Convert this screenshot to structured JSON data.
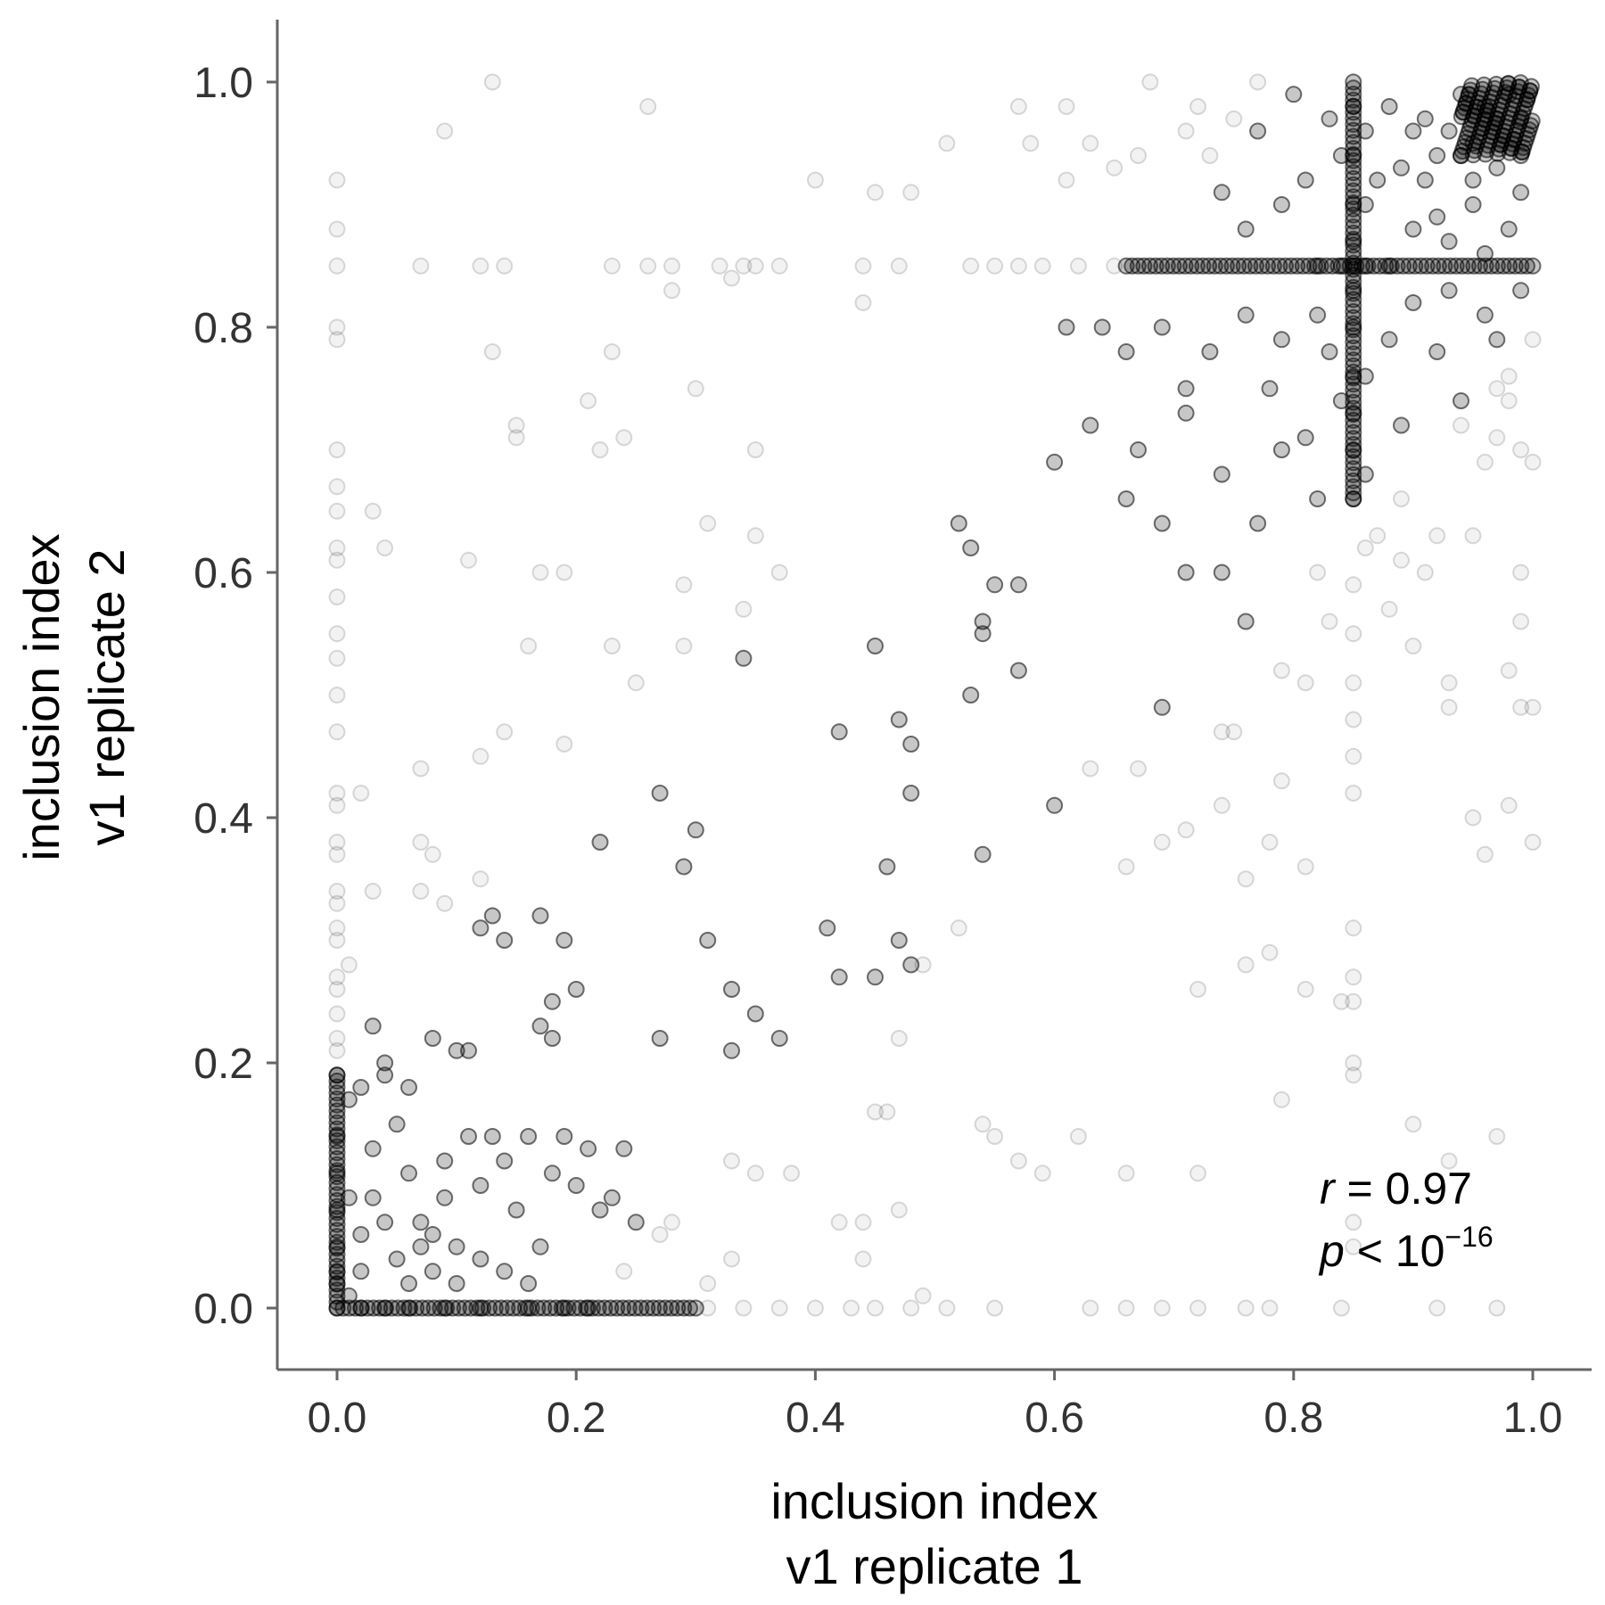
{
  "chart_data": {
    "type": "scatter",
    "xlabel": [
      "inclusion index",
      "v1 replicate 1"
    ],
    "ylabel": [
      "inclusion index",
      "v1 replicate 2"
    ],
    "xlim": [
      -0.05,
      1.05
    ],
    "ylim": [
      -0.05,
      1.05
    ],
    "xticks": [
      "0.0",
      "0.2",
      "0.4",
      "0.6",
      "0.8",
      "1.0"
    ],
    "yticks": [
      "0.0",
      "0.2",
      "0.4",
      "0.6",
      "0.8",
      "1.0"
    ],
    "grid": false,
    "legend": "none",
    "annotation": {
      "r_symbol": "r",
      "r_text": " = 0.97",
      "p_symbol": "p",
      "p_text": " < 10",
      "p_exponent": "−16",
      "placement": "bottom-right"
    },
    "colors": {
      "point": "#000000",
      "axis": "#666666"
    },
    "points_dark": [
      [
        0.85,
        0.85
      ],
      [
        0.85,
        0.83
      ],
      [
        0.85,
        0.87
      ],
      [
        0.86,
        0.85
      ],
      [
        0.84,
        0.85
      ],
      [
        0.85,
        0.8
      ],
      [
        0.85,
        0.9
      ],
      [
        0.82,
        0.85
      ],
      [
        0.88,
        0.85
      ],
      [
        0.95,
        0.95
      ],
      [
        0.97,
        0.97
      ],
      [
        0.98,
        0.99
      ],
      [
        0.96,
        0.98
      ],
      [
        0.99,
        0.97
      ],
      [
        0.93,
        0.96
      ],
      [
        0.97,
        0.93
      ],
      [
        0.94,
        0.99
      ],
      [
        0.99,
        0.94
      ],
      [
        0.91,
        0.92
      ],
      [
        0.92,
        0.89
      ],
      [
        0.89,
        0.93
      ],
      [
        0.95,
        0.9
      ],
      [
        0.9,
        0.96
      ],
      [
        0.98,
        0.88
      ],
      [
        0.88,
        0.98
      ],
      [
        0.96,
        0.86
      ],
      [
        0.86,
        0.96
      ],
      [
        0.93,
        0.87
      ],
      [
        0.87,
        0.92
      ],
      [
        0.91,
        0.97
      ],
      [
        0.99,
        0.91
      ],
      [
        0.92,
        0.94
      ],
      [
        0.95,
        0.92
      ],
      [
        0.9,
        0.88
      ],
      [
        0.86,
        0.9
      ],
      [
        0.84,
        0.94
      ],
      [
        0.81,
        0.92
      ],
      [
        0.79,
        0.9
      ],
      [
        0.83,
        0.97
      ],
      [
        0.77,
        0.96
      ],
      [
        0.8,
        0.99
      ],
      [
        0.76,
        0.88
      ],
      [
        0.74,
        0.91
      ],
      [
        0.82,
        0.81
      ],
      [
        0.79,
        0.79
      ],
      [
        0.83,
        0.78
      ],
      [
        0.86,
        0.76
      ],
      [
        0.88,
        0.79
      ],
      [
        0.9,
        0.82
      ],
      [
        0.93,
        0.83
      ],
      [
        0.96,
        0.81
      ],
      [
        0.99,
        0.83
      ],
      [
        0.97,
        0.79
      ],
      [
        0.92,
        0.78
      ],
      [
        0.94,
        0.74
      ],
      [
        0.89,
        0.72
      ],
      [
        0.84,
        0.74
      ],
      [
        0.81,
        0.71
      ],
      [
        0.78,
        0.75
      ],
      [
        0.76,
        0.81
      ],
      [
        0.73,
        0.78
      ],
      [
        0.71,
        0.75
      ],
      [
        0.69,
        0.8
      ],
      [
        0.66,
        0.78
      ],
      [
        0.64,
        0.8
      ],
      [
        0.61,
        0.8
      ],
      [
        0.67,
        0.7
      ],
      [
        0.71,
        0.73
      ],
      [
        0.74,
        0.68
      ],
      [
        0.79,
        0.7
      ],
      [
        0.82,
        0.66
      ],
      [
        0.86,
        0.68
      ],
      [
        0.85,
        0.66
      ],
      [
        0.85,
        0.7
      ],
      [
        0.85,
        0.73
      ],
      [
        0.85,
        0.76
      ],
      [
        0.85,
        0.94
      ],
      [
        0.85,
        0.98
      ],
      [
        0.63,
        0.72
      ],
      [
        0.6,
        0.69
      ],
      [
        0.66,
        0.66
      ],
      [
        0.69,
        0.64
      ],
      [
        0.71,
        0.6
      ],
      [
        0.74,
        0.6
      ],
      [
        0.77,
        0.64
      ],
      [
        0.76,
        0.56
      ],
      [
        0.69,
        0.49
      ],
      [
        0.57,
        0.59
      ],
      [
        0.55,
        0.59
      ],
      [
        0.54,
        0.56
      ],
      [
        0.52,
        0.64
      ],
      [
        0.53,
        0.62
      ],
      [
        0.54,
        0.55
      ],
      [
        0.57,
        0.52
      ],
      [
        0.53,
        0.5
      ],
      [
        0.6,
        0.41
      ],
      [
        0.45,
        0.54
      ],
      [
        0.47,
        0.48
      ],
      [
        0.48,
        0.46
      ],
      [
        0.42,
        0.47
      ],
      [
        0.48,
        0.42
      ],
      [
        0.46,
        0.36
      ],
      [
        0.54,
        0.37
      ],
      [
        0.27,
        0.42
      ],
      [
        0.3,
        0.39
      ],
      [
        0.29,
        0.36
      ],
      [
        0.34,
        0.53
      ],
      [
        0.22,
        0.38
      ],
      [
        0.41,
        0.31
      ],
      [
        0.47,
        0.3
      ],
      [
        0.48,
        0.28
      ],
      [
        0.45,
        0.27
      ],
      [
        0.42,
        0.27
      ],
      [
        0.31,
        0.3
      ],
      [
        0.33,
        0.26
      ],
      [
        0.35,
        0.24
      ],
      [
        0.37,
        0.22
      ],
      [
        0.33,
        0.21
      ],
      [
        0.27,
        0.22
      ],
      [
        0.2,
        0.26
      ],
      [
        0.17,
        0.23
      ],
      [
        0.18,
        0.25
      ],
      [
        0.19,
        0.3
      ],
      [
        0.17,
        0.32
      ],
      [
        0.14,
        0.3
      ],
      [
        0.13,
        0.32
      ],
      [
        0.12,
        0.31
      ],
      [
        0.18,
        0.22
      ],
      [
        0.1,
        0.21
      ],
      [
        0.11,
        0.21
      ],
      [
        0.08,
        0.22
      ],
      [
        0.06,
        0.18
      ],
      [
        0.04,
        0.2
      ],
      [
        0.04,
        0.19
      ],
      [
        0.03,
        0.23
      ],
      [
        0.02,
        0.18
      ],
      [
        0.01,
        0.17
      ],
      [
        0.0,
        0.19
      ],
      [
        0.0,
        0.14
      ],
      [
        0.0,
        0.11
      ],
      [
        0.0,
        0.08
      ],
      [
        0.0,
        0.05
      ],
      [
        0.0,
        0.03
      ],
      [
        0.0,
        0.02
      ],
      [
        0.01,
        0.01
      ],
      [
        0.02,
        0.0
      ],
      [
        0.04,
        0.0
      ],
      [
        0.06,
        0.0
      ],
      [
        0.09,
        0.0
      ],
      [
        0.12,
        0.0
      ],
      [
        0.16,
        0.0
      ],
      [
        0.19,
        0.0
      ],
      [
        0.21,
        0.0
      ],
      [
        0.02,
        0.06
      ],
      [
        0.03,
        0.09
      ],
      [
        0.05,
        0.04
      ],
      [
        0.07,
        0.07
      ],
      [
        0.06,
        0.11
      ],
      [
        0.08,
        0.03
      ],
      [
        0.09,
        0.09
      ],
      [
        0.1,
        0.05
      ],
      [
        0.11,
        0.14
      ],
      [
        0.12,
        0.1
      ],
      [
        0.13,
        0.14
      ],
      [
        0.14,
        0.12
      ],
      [
        0.15,
        0.08
      ],
      [
        0.16,
        0.14
      ],
      [
        0.17,
        0.05
      ],
      [
        0.18,
        0.11
      ],
      [
        0.19,
        0.14
      ],
      [
        0.2,
        0.1
      ],
      [
        0.21,
        0.13
      ],
      [
        0.22,
        0.08
      ],
      [
        0.23,
        0.09
      ],
      [
        0.24,
        0.13
      ],
      [
        0.25,
        0.07
      ],
      [
        0.03,
        0.13
      ],
      [
        0.05,
        0.15
      ],
      [
        0.07,
        0.05
      ],
      [
        0.09,
        0.12
      ],
      [
        0.01,
        0.09
      ],
      [
        0.02,
        0.03
      ],
      [
        0.04,
        0.07
      ],
      [
        0.06,
        0.02
      ],
      [
        0.08,
        0.06
      ],
      [
        0.1,
        0.02
      ],
      [
        0.12,
        0.04
      ],
      [
        0.14,
        0.03
      ],
      [
        0.16,
        0.02
      ]
    ],
    "points_light": [
      [
        0.13,
        1.0
      ],
      [
        0.09,
        0.96
      ],
      [
        0.26,
        0.98
      ],
      [
        0.0,
        0.92
      ],
      [
        0.0,
        0.88
      ],
      [
        0.0,
        0.85
      ],
      [
        0.0,
        0.8
      ],
      [
        0.0,
        0.79
      ],
      [
        0.0,
        0.7
      ],
      [
        0.0,
        0.67
      ],
      [
        0.0,
        0.65
      ],
      [
        0.0,
        0.62
      ],
      [
        0.0,
        0.61
      ],
      [
        0.0,
        0.58
      ],
      [
        0.0,
        0.55
      ],
      [
        0.0,
        0.53
      ],
      [
        0.0,
        0.5
      ],
      [
        0.0,
        0.47
      ],
      [
        0.0,
        0.42
      ],
      [
        0.0,
        0.41
      ],
      [
        0.0,
        0.38
      ],
      [
        0.0,
        0.37
      ],
      [
        0.0,
        0.34
      ],
      [
        0.0,
        0.33
      ],
      [
        0.0,
        0.31
      ],
      [
        0.0,
        0.3
      ],
      [
        0.0,
        0.27
      ],
      [
        0.0,
        0.26
      ],
      [
        0.0,
        0.24
      ],
      [
        0.0,
        0.22
      ],
      [
        0.0,
        0.21
      ],
      [
        0.07,
        0.85
      ],
      [
        0.12,
        0.85
      ],
      [
        0.14,
        0.85
      ],
      [
        0.23,
        0.85
      ],
      [
        0.26,
        0.85
      ],
      [
        0.28,
        0.85
      ],
      [
        0.32,
        0.85
      ],
      [
        0.34,
        0.85
      ],
      [
        0.35,
        0.85
      ],
      [
        0.37,
        0.85
      ],
      [
        0.44,
        0.85
      ],
      [
        0.47,
        0.85
      ],
      [
        0.53,
        0.85
      ],
      [
        0.55,
        0.85
      ],
      [
        0.57,
        0.85
      ],
      [
        0.59,
        0.85
      ],
      [
        0.62,
        0.85
      ],
      [
        0.65,
        0.85
      ],
      [
        0.28,
        0.83
      ],
      [
        0.33,
        0.84
      ],
      [
        0.44,
        0.82
      ],
      [
        0.4,
        0.92
      ],
      [
        0.45,
        0.91
      ],
      [
        0.48,
        0.91
      ],
      [
        0.51,
        0.95
      ],
      [
        0.57,
        0.98
      ],
      [
        0.58,
        0.95
      ],
      [
        0.61,
        0.98
      ],
      [
        0.61,
        0.92
      ],
      [
        0.63,
        0.95
      ],
      [
        0.65,
        0.93
      ],
      [
        0.67,
        0.94
      ],
      [
        0.68,
        1.0
      ],
      [
        0.72,
        0.98
      ],
      [
        0.71,
        0.96
      ],
      [
        0.73,
        0.94
      ],
      [
        0.75,
        0.97
      ],
      [
        0.77,
        1.0
      ],
      [
        0.13,
        0.78
      ],
      [
        0.23,
        0.78
      ],
      [
        0.3,
        0.75
      ],
      [
        0.21,
        0.74
      ],
      [
        0.15,
        0.72
      ],
      [
        0.15,
        0.71
      ],
      [
        0.22,
        0.7
      ],
      [
        0.24,
        0.71
      ],
      [
        0.35,
        0.7
      ],
      [
        0.31,
        0.64
      ],
      [
        0.35,
        0.63
      ],
      [
        0.03,
        0.65
      ],
      [
        0.04,
        0.62
      ],
      [
        0.11,
        0.61
      ],
      [
        0.17,
        0.6
      ],
      [
        0.19,
        0.6
      ],
      [
        0.29,
        0.59
      ],
      [
        0.37,
        0.6
      ],
      [
        0.34,
        0.57
      ],
      [
        0.23,
        0.54
      ],
      [
        0.16,
        0.54
      ],
      [
        0.29,
        0.54
      ],
      [
        0.25,
        0.51
      ],
      [
        0.12,
        0.45
      ],
      [
        0.14,
        0.47
      ],
      [
        0.19,
        0.46
      ],
      [
        0.07,
        0.44
      ],
      [
        0.02,
        0.42
      ],
      [
        0.07,
        0.38
      ],
      [
        0.08,
        0.37
      ],
      [
        0.09,
        0.33
      ],
      [
        0.07,
        0.34
      ],
      [
        0.03,
        0.34
      ],
      [
        0.12,
        0.35
      ],
      [
        0.01,
        0.28
      ],
      [
        0.52,
        0.31
      ],
      [
        0.49,
        0.28
      ],
      [
        0.47,
        0.22
      ],
      [
        0.46,
        0.16
      ],
      [
        0.45,
        0.16
      ],
      [
        0.54,
        0.15
      ],
      [
        0.55,
        0.14
      ],
      [
        0.57,
        0.12
      ],
      [
        0.59,
        0.11
      ],
      [
        0.62,
        0.14
      ],
      [
        0.66,
        0.11
      ],
      [
        0.72,
        0.11
      ],
      [
        0.44,
        0.07
      ],
      [
        0.42,
        0.07
      ],
      [
        0.44,
        0.04
      ],
      [
        0.47,
        0.08
      ],
      [
        0.49,
        0.01
      ],
      [
        0.38,
        0.11
      ],
      [
        0.35,
        0.11
      ],
      [
        0.33,
        0.12
      ],
      [
        0.33,
        0.04
      ],
      [
        0.31,
        0.02
      ],
      [
        0.28,
        0.07
      ],
      [
        0.27,
        0.06
      ],
      [
        0.24,
        0.03
      ],
      [
        0.31,
        0.0
      ],
      [
        0.34,
        0.0
      ],
      [
        0.37,
        0.0
      ],
      [
        0.4,
        0.0
      ],
      [
        0.43,
        0.0
      ],
      [
        0.45,
        0.0
      ],
      [
        0.48,
        0.0
      ],
      [
        0.51,
        0.0
      ],
      [
        0.55,
        0.0
      ],
      [
        0.63,
        0.0
      ],
      [
        0.66,
        0.0
      ],
      [
        0.69,
        0.0
      ],
      [
        0.72,
        0.0
      ],
      [
        0.76,
        0.0
      ],
      [
        0.78,
        0.0
      ],
      [
        0.84,
        0.0
      ],
      [
        0.92,
        0.0
      ],
      [
        0.97,
        0.0
      ],
      [
        0.74,
        0.47
      ],
      [
        0.69,
        0.38
      ],
      [
        0.71,
        0.39
      ],
      [
        0.74,
        0.41
      ],
      [
        0.76,
        0.35
      ],
      [
        0.78,
        0.38
      ],
      [
        0.81,
        0.36
      ],
      [
        0.79,
        0.43
      ],
      [
        0.81,
        0.51
      ],
      [
        0.79,
        0.52
      ],
      [
        0.75,
        0.47
      ],
      [
        0.67,
        0.44
      ],
      [
        0.66,
        0.36
      ],
      [
        0.63,
        0.44
      ],
      [
        0.82,
        0.6
      ],
      [
        0.83,
        0.56
      ],
      [
        0.86,
        0.62
      ],
      [
        0.85,
        0.59
      ],
      [
        0.85,
        0.55
      ],
      [
        0.85,
        0.51
      ],
      [
        0.85,
        0.48
      ],
      [
        0.85,
        0.45
      ],
      [
        0.85,
        0.42
      ],
      [
        0.85,
        0.31
      ],
      [
        0.85,
        0.27
      ],
      [
        0.85,
        0.25
      ],
      [
        0.85,
        0.2
      ],
      [
        0.85,
        0.19
      ],
      [
        0.85,
        0.07
      ],
      [
        0.85,
        0.05
      ],
      [
        0.84,
        0.25
      ],
      [
        0.81,
        0.26
      ],
      [
        0.78,
        0.29
      ],
      [
        0.76,
        0.28
      ],
      [
        0.72,
        0.26
      ],
      [
        0.79,
        0.17
      ],
      [
        0.9,
        0.15
      ],
      [
        0.93,
        0.12
      ],
      [
        0.97,
        0.14
      ],
      [
        0.95,
        0.4
      ],
      [
        0.96,
        0.37
      ],
      [
        0.98,
        0.41
      ],
      [
        1.0,
        0.38
      ],
      [
        1.0,
        0.49
      ],
      [
        0.99,
        0.49
      ],
      [
        0.98,
        0.52
      ],
      [
        0.99,
        0.56
      ],
      [
        0.99,
        0.6
      ],
      [
        0.93,
        0.51
      ],
      [
        0.93,
        0.49
      ],
      [
        0.9,
        0.54
      ],
      [
        0.89,
        0.61
      ],
      [
        0.89,
        0.66
      ],
      [
        0.91,
        0.6
      ],
      [
        0.92,
        0.63
      ],
      [
        0.95,
        0.63
      ],
      [
        0.96,
        0.69
      ],
      [
        0.97,
        0.71
      ],
      [
        0.99,
        0.7
      ],
      [
        1.0,
        0.69
      ],
      [
        0.98,
        0.74
      ],
      [
        0.97,
        0.75
      ],
      [
        0.98,
        0.76
      ],
      [
        0.94,
        0.72
      ],
      [
        1.0,
        0.79
      ],
      [
        0.87,
        0.63
      ],
      [
        0.88,
        0.57
      ]
    ]
  }
}
